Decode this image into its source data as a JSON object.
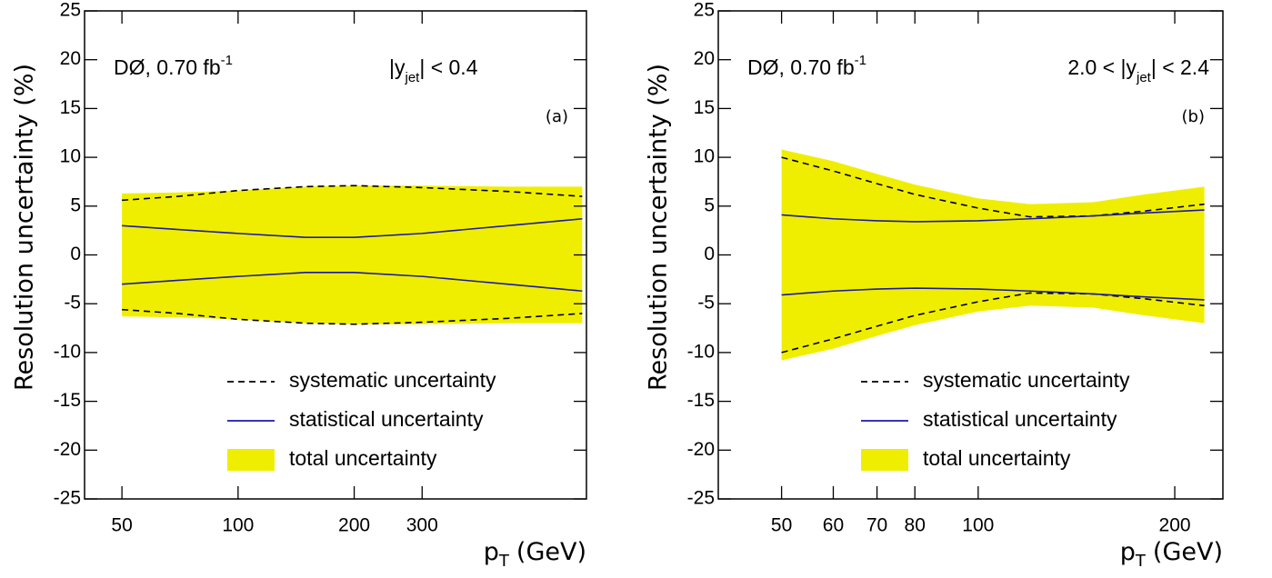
{
  "chart_data": [
    {
      "type": "band",
      "log_x": true,
      "panel_label": "(a)",
      "experiment": {
        "text": "DØ, 0.70 fb",
        "sup": "-1"
      },
      "region": {
        "pre": "|y",
        "sub": "jet",
        "post": "| < 0.4"
      },
      "x_label": {
        "text": "p",
        "sub": "T",
        "post": "(GeV)"
      },
      "y_label": "Resolution uncertainty (%)",
      "x": [
        50,
        70,
        100,
        150,
        200,
        300,
        500,
        780
      ],
      "xlim": [
        40,
        800
      ],
      "xticks": [
        50,
        100,
        200,
        300
      ],
      "ylim": [
        -25,
        25
      ],
      "yticks": [
        -25,
        -20,
        -15,
        -10,
        -5,
        0,
        5,
        10,
        15,
        20,
        25
      ],
      "series": [
        {
          "name": "systematic uncertainty",
          "color": "#000000",
          "style": "dashed",
          "upper": [
            5.6,
            6.0,
            6.6,
            7.0,
            7.1,
            6.9,
            6.5,
            6.0
          ],
          "lower": [
            -5.6,
            -6.0,
            -6.6,
            -7.0,
            -7.1,
            -6.9,
            -6.5,
            -6.0
          ]
        },
        {
          "name": "statistical uncertainty",
          "color": "#1a1aa8",
          "style": "solid",
          "upper": [
            3.0,
            2.6,
            2.2,
            1.8,
            1.8,
            2.2,
            3.0,
            3.7
          ],
          "lower": [
            -3.0,
            -2.6,
            -2.2,
            -1.8,
            -1.8,
            -2.2,
            -3.0,
            -3.7
          ]
        },
        {
          "name": "total uncertainty",
          "color": "#f0ee00",
          "style": "band",
          "upper": [
            6.3,
            6.4,
            6.6,
            7.0,
            7.1,
            7.1,
            7.0,
            7.0
          ],
          "lower": [
            -6.3,
            -6.4,
            -6.6,
            -7.0,
            -7.1,
            -7.1,
            -7.0,
            -7.0
          ]
        }
      ]
    },
    {
      "type": "band",
      "log_x": true,
      "panel_label": "(b)",
      "experiment": {
        "text": "DØ, 0.70 fb",
        "sup": "-1"
      },
      "region": {
        "pre": "2.0 < |y",
        "sub": "jet",
        "post": "| < 2.4"
      },
      "x_label": {
        "text": "p",
        "sub": "T",
        "post": "(GeV)"
      },
      "y_label": "Resolution uncertainty (%)",
      "x": [
        50,
        60,
        70,
        80,
        100,
        120,
        150,
        180,
        222
      ],
      "xlim": [
        40,
        237
      ],
      "xticks": [
        50,
        60,
        70,
        80,
        100,
        200
      ],
      "ylim": [
        -25,
        25
      ],
      "yticks": [
        -25,
        -20,
        -15,
        -10,
        -5,
        0,
        5,
        10,
        15,
        20,
        25
      ],
      "series": [
        {
          "name": "systematic uncertainty",
          "color": "#000000",
          "style": "dashed",
          "upper": [
            10.0,
            8.6,
            7.3,
            6.2,
            4.8,
            3.9,
            4.0,
            4.5,
            5.2
          ],
          "lower": [
            -10.0,
            -8.6,
            -7.3,
            -6.2,
            -4.8,
            -3.9,
            -4.0,
            -4.5,
            -5.2
          ]
        },
        {
          "name": "statistical uncertainty",
          "color": "#1a1aa8",
          "style": "solid",
          "upper": [
            4.1,
            3.7,
            3.5,
            3.4,
            3.5,
            3.7,
            4.0,
            4.3,
            4.6
          ],
          "lower": [
            -4.1,
            -3.7,
            -3.5,
            -3.4,
            -3.5,
            -3.7,
            -4.0,
            -4.3,
            -4.6
          ]
        },
        {
          "name": "total uncertainty",
          "color": "#f0ee00",
          "style": "band",
          "upper": [
            10.8,
            9.6,
            8.3,
            7.2,
            5.8,
            5.2,
            5.4,
            6.2,
            7.0
          ],
          "lower": [
            -10.8,
            -9.6,
            -8.3,
            -7.2,
            -5.8,
            -5.2,
            -5.4,
            -6.2,
            -7.0
          ]
        }
      ]
    }
  ]
}
